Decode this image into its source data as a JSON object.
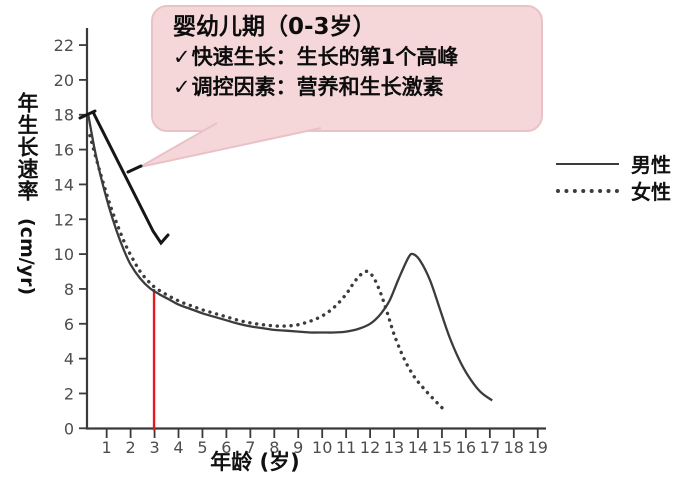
{
  "figure": {
    "x_axis_label": "年龄 (岁)",
    "y_axis_label_cn": "年生长速率",
    "y_axis_label_unit": "(cm/yr)"
  },
  "legend": {
    "items": [
      {
        "label": "男性",
        "style": "solid"
      },
      {
        "label": "女性",
        "style": "dotted"
      }
    ]
  },
  "callout": {
    "title": "婴幼儿期（0-3岁）",
    "lines": [
      {
        "check": "✓",
        "text": "快速生长：生长的第1个高峰"
      },
      {
        "check": "✓",
        "text": "调控因素：营养和生长激素"
      }
    ],
    "bg_color": "#f5d7da",
    "border_color": "#e9c2c7"
  },
  "chart_data": {
    "type": "line",
    "title": "",
    "xlabel": "年龄 (岁)",
    "ylabel": "年生长速率 (cm/yr)",
    "xlim": [
      0,
      19.4
    ],
    "ylim": [
      0,
      23
    ],
    "grid": false,
    "legend_position": "right",
    "x_ticks": [
      1,
      2,
      3,
      4,
      5,
      6,
      7,
      8,
      9,
      10,
      11,
      12,
      13,
      14,
      15,
      16,
      17,
      18,
      19
    ],
    "y_ticks": [
      0,
      2,
      4,
      6,
      8,
      10,
      12,
      14,
      16,
      18,
      20,
      22
    ],
    "series": [
      {
        "name": "男性",
        "style": "solid",
        "color": "#3c3c3c",
        "points": [
          [
            0.22,
            18.1
          ],
          [
            0.5,
            16.0
          ],
          [
            0.8,
            14.2
          ],
          [
            1.1,
            12.7
          ],
          [
            1.4,
            11.4
          ],
          [
            1.7,
            10.3
          ],
          [
            2.0,
            9.4
          ],
          [
            2.4,
            8.6
          ],
          [
            2.8,
            8.05
          ],
          [
            3.2,
            7.7
          ],
          [
            3.6,
            7.4
          ],
          [
            4.0,
            7.1
          ],
          [
            4.5,
            6.85
          ],
          [
            5.0,
            6.6
          ],
          [
            5.5,
            6.4
          ],
          [
            6.0,
            6.2
          ],
          [
            6.5,
            6.0
          ],
          [
            7.0,
            5.85
          ],
          [
            7.5,
            5.75
          ],
          [
            8.0,
            5.65
          ],
          [
            8.5,
            5.6
          ],
          [
            9.0,
            5.55
          ],
          [
            9.5,
            5.5
          ],
          [
            10.0,
            5.5
          ],
          [
            10.5,
            5.5
          ],
          [
            11.0,
            5.55
          ],
          [
            11.5,
            5.7
          ],
          [
            12.0,
            6.0
          ],
          [
            12.4,
            6.5
          ],
          [
            12.8,
            7.3
          ],
          [
            13.2,
            8.6
          ],
          [
            13.6,
            9.8
          ],
          [
            13.8,
            10.0
          ],
          [
            14.1,
            9.6
          ],
          [
            14.5,
            8.5
          ],
          [
            14.9,
            6.9
          ],
          [
            15.3,
            5.3
          ],
          [
            15.7,
            4.0
          ],
          [
            16.1,
            3.0
          ],
          [
            16.6,
            2.1
          ],
          [
            17.1,
            1.6
          ]
        ]
      },
      {
        "name": "女性",
        "style": "dotted",
        "color": "#3c3c3c",
        "points": [
          [
            0.3,
            16.8
          ],
          [
            0.6,
            15.3
          ],
          [
            0.9,
            13.9
          ],
          [
            1.2,
            12.6
          ],
          [
            1.5,
            11.5
          ],
          [
            1.8,
            10.5
          ],
          [
            2.1,
            9.7
          ],
          [
            2.4,
            9.0
          ],
          [
            2.7,
            8.5
          ],
          [
            3.0,
            8.1
          ],
          [
            3.4,
            7.75
          ],
          [
            3.8,
            7.45
          ],
          [
            4.2,
            7.2
          ],
          [
            4.6,
            7.0
          ],
          [
            5.0,
            6.8
          ],
          [
            5.5,
            6.6
          ],
          [
            6.0,
            6.4
          ],
          [
            6.5,
            6.2
          ],
          [
            7.0,
            6.05
          ],
          [
            7.5,
            5.95
          ],
          [
            8.0,
            5.88
          ],
          [
            8.5,
            5.87
          ],
          [
            9.0,
            5.95
          ],
          [
            9.5,
            6.15
          ],
          [
            10.0,
            6.45
          ],
          [
            10.5,
            6.95
          ],
          [
            11.0,
            7.7
          ],
          [
            11.4,
            8.5
          ],
          [
            11.8,
            9.0
          ],
          [
            12.1,
            8.75
          ],
          [
            12.4,
            7.9
          ],
          [
            12.7,
            6.7
          ],
          [
            13.0,
            5.4
          ],
          [
            13.4,
            4.05
          ],
          [
            13.8,
            3.05
          ],
          [
            14.2,
            2.35
          ],
          [
            14.7,
            1.6
          ],
          [
            15.1,
            1.05
          ]
        ]
      }
    ],
    "annotations": {
      "red_line": {
        "x": 3,
        "y_from": 0,
        "y_to": 8,
        "color": "#e8191c"
      },
      "bracket_range_years": "0-3"
    }
  }
}
